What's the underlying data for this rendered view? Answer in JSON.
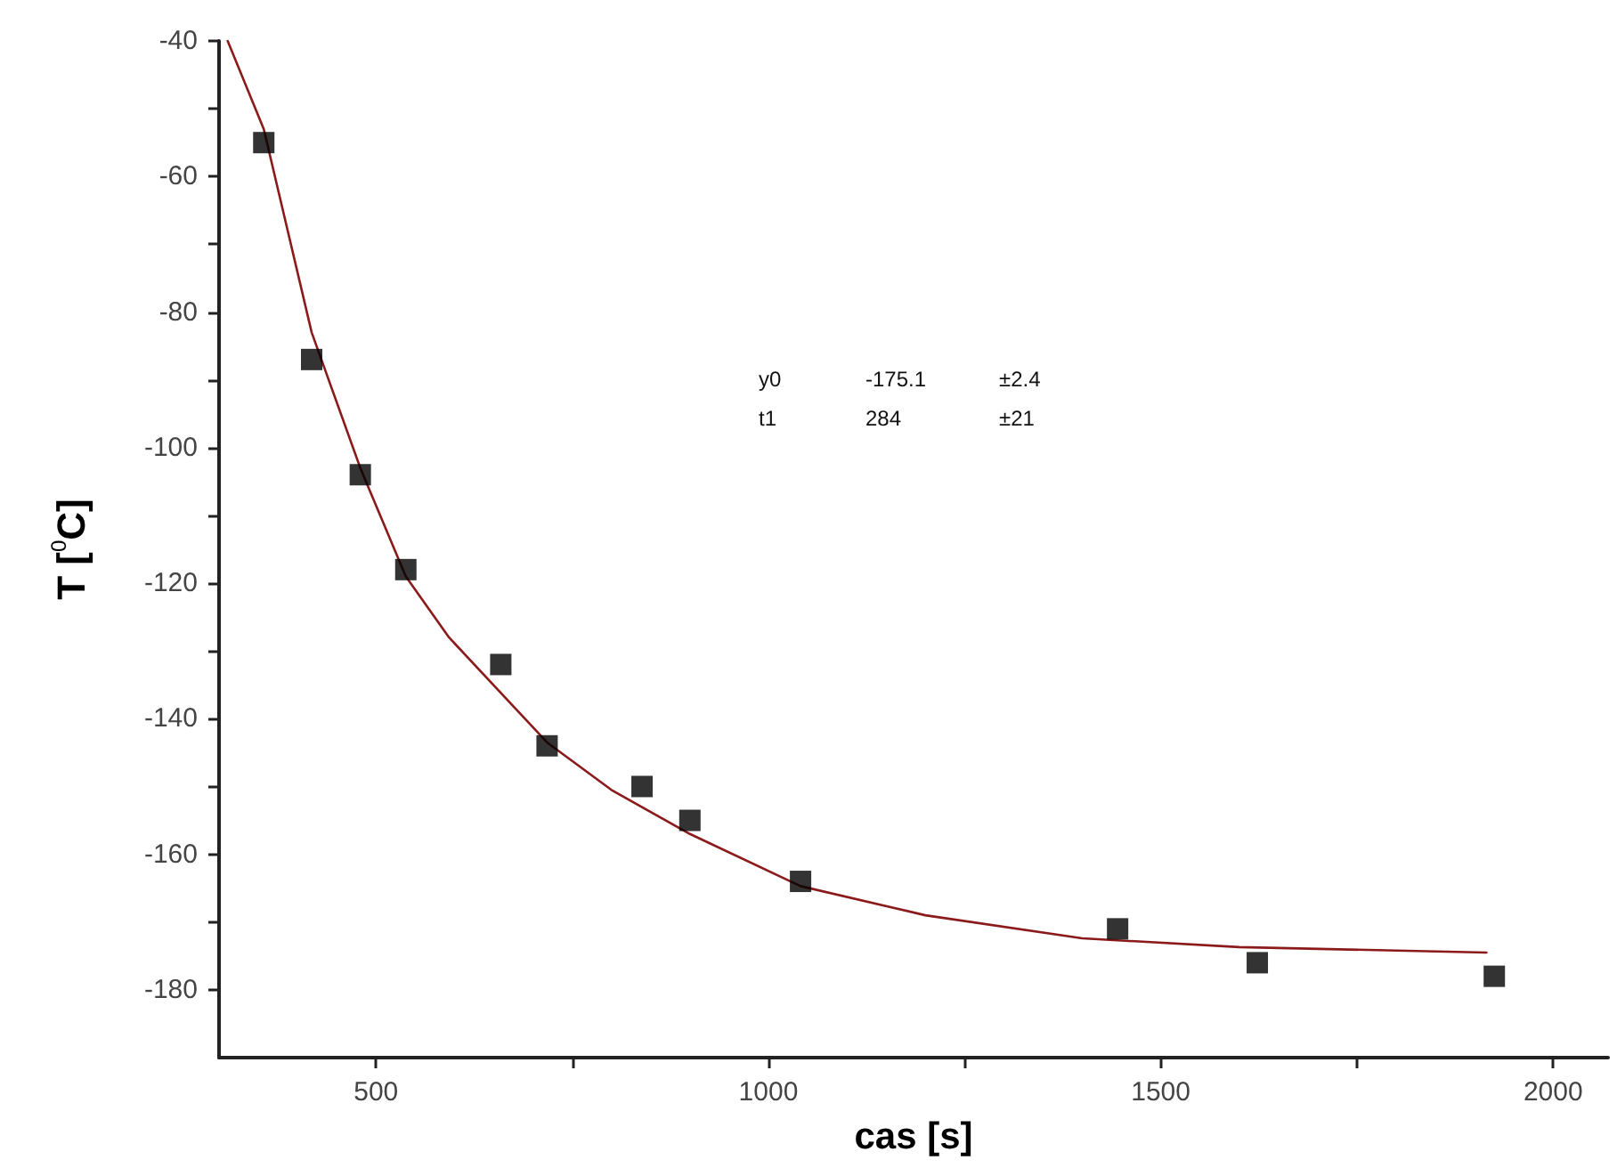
{
  "chart_data": {
    "type": "scatter",
    "xlabel": "cas [s]",
    "ylabel": "T [$^{0}$C]",
    "annotations": [
      "y0",
      "-175.1",
      "±2.4",
      "t1",
      "284",
      "±21"
    ],
    "xlim": [
      300,
      2070
    ],
    "ylim": [
      -190,
      -40
    ],
    "xticks": [
      500,
      {
        "value": 750,
        "label": null
      },
      1000,
      {
        "value": 1250,
        "label": null
      },
      1500,
      {
        "value": 1750,
        "label": null
      },
      2000
    ],
    "yticks": [
      -40,
      {
        "value": -50,
        "label": null
      },
      -60,
      {
        "value": -70,
        "label": null
      },
      -80,
      {
        "value": -90,
        "label": null
      },
      -100,
      {
        "value": -110,
        "label": null
      },
      -120,
      {
        "value": -130,
        "label": null
      },
      -140,
      {
        "value": -150,
        "label": null
      },
      -160,
      {
        "value": -170,
        "label": null
      },
      -180
    ],
    "grid": false,
    "series": [
      {
        "type": "line",
        "color": "#8b1a1a",
        "marker": "none",
        "line_style": "solid",
        "x": [
          311,
          357,
          418,
          480,
          538,
          593,
          718,
          800,
          900,
          1041,
          1200,
          1400,
          1600,
          1915
        ],
        "values": [
          -40,
          -53,
          -83,
          -103,
          -119,
          -128,
          -143.5,
          -150.5,
          -157,
          -164.7,
          -169,
          -172.4,
          -173.7,
          -174.5
        ]
      },
      {
        "color": "#000000",
        "marker": "square",
        "x": [
          357,
          418,
          480,
          538,
          659,
          718,
          839,
          900,
          1041,
          1445,
          1623,
          1925
        ],
        "values": [
          -55,
          -87,
          -104,
          -118,
          -132,
          -144,
          -150,
          -155,
          -164,
          -171,
          -176,
          -178
        ]
      }
    ]
  }
}
